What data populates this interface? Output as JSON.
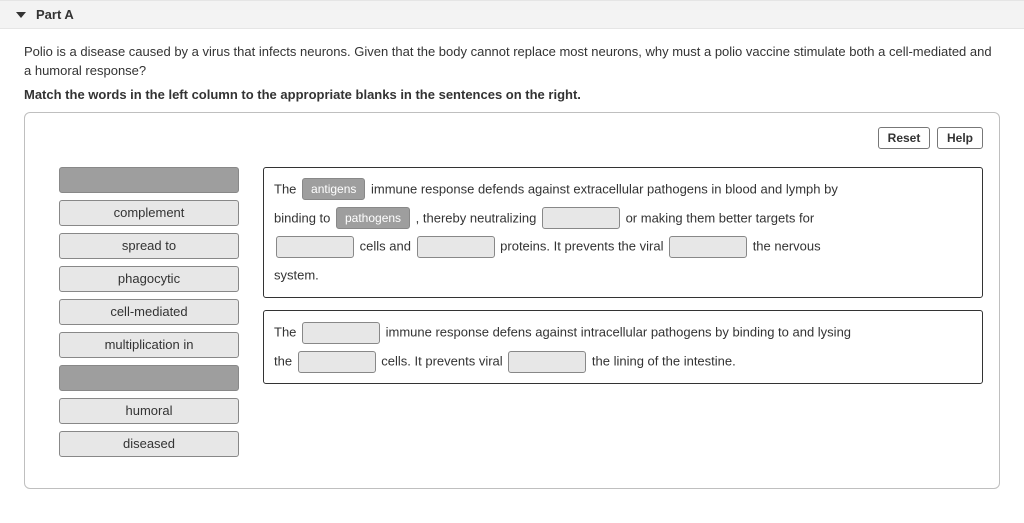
{
  "header": {
    "part_label": "Part A"
  },
  "question": {
    "prompt": "Polio is a disease caused by a virus that infects neurons. Given that the body cannot replace most neurons, why must a polio vaccine stimulate both a cell-mediated and a humoral response?",
    "instruction": "Match the words in the left column to the appropriate blanks in the sentences on the right."
  },
  "toolbar": {
    "reset_label": "Reset",
    "help_label": "Help"
  },
  "terms": [
    {
      "label": "",
      "used": true
    },
    {
      "label": "complement",
      "used": false
    },
    {
      "label": "spread to",
      "used": false
    },
    {
      "label": "phagocytic",
      "used": false
    },
    {
      "label": "cell-mediated",
      "used": false
    },
    {
      "label": "multiplication in",
      "used": false
    },
    {
      "label": "",
      "used": true
    },
    {
      "label": "humoral",
      "used": false
    },
    {
      "label": "diseased",
      "used": false
    }
  ],
  "groups": {
    "g1": {
      "t1": "The ",
      "s1": "antigens",
      "t2": " immune response defends against extracellular pathogens in blood and lymph by",
      "t3": "binding to ",
      "s2": "pathogens",
      "t4": " , thereby neutralizing ",
      "t5": " or making them better targets for",
      "t6": " cells and ",
      "t7": " proteins. It prevents the viral ",
      "t8": " the nervous",
      "t9": "system."
    },
    "g2": {
      "t1": "The ",
      "t2": " immune response defens against intracellular pathogens by binding to and lysing",
      "t3": "the ",
      "t4": " cells. It prevents viral ",
      "t5": " the lining of the intestine."
    }
  },
  "colors": {
    "term_bg": "#e7e7e7",
    "used_bg": "#9e9e9e",
    "border": "#888888"
  }
}
